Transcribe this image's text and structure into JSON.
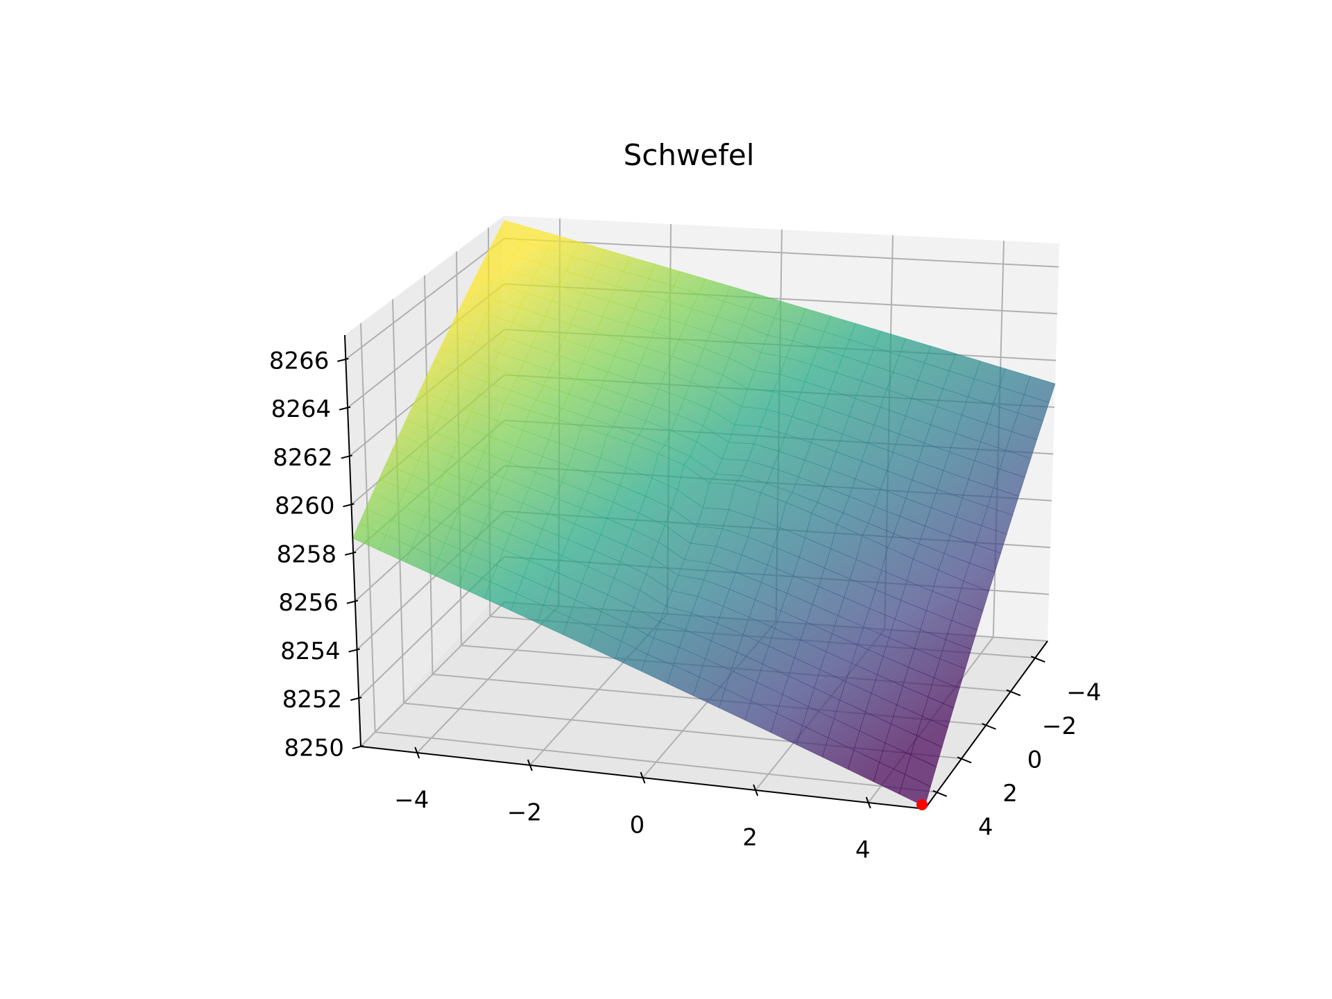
{
  "chart_data": {
    "type": "surface3d",
    "title": "Schwefel",
    "x_ticks": [
      "−4",
      "−2",
      "0",
      "2",
      "4"
    ],
    "y_ticks": [
      "−4",
      "−2",
      "0",
      "2",
      "4"
    ],
    "z_ticks": [
      "8250",
      "8252",
      "8254",
      "8256",
      "8258",
      "8260",
      "8262",
      "8264",
      "8266"
    ],
    "xlim": [
      -5,
      5
    ],
    "ylim": [
      -5,
      5
    ],
    "zlim": [
      8250,
      8267
    ],
    "grid": true,
    "colormap": "viridis",
    "surface_alpha": 0.7,
    "surface_corners": [
      {
        "x": -5,
        "y": -5,
        "z": 8266.8
      },
      {
        "x": 5,
        "y": -5,
        "z": 8261.0
      },
      {
        "x": -5,
        "y": 5,
        "z": 8258.6
      },
      {
        "x": 5,
        "y": 5,
        "z": 8250.1
      }
    ],
    "minimum_marker": {
      "x": 5,
      "y": 5,
      "z": 8250.0,
      "color": "#ff0000"
    }
  }
}
